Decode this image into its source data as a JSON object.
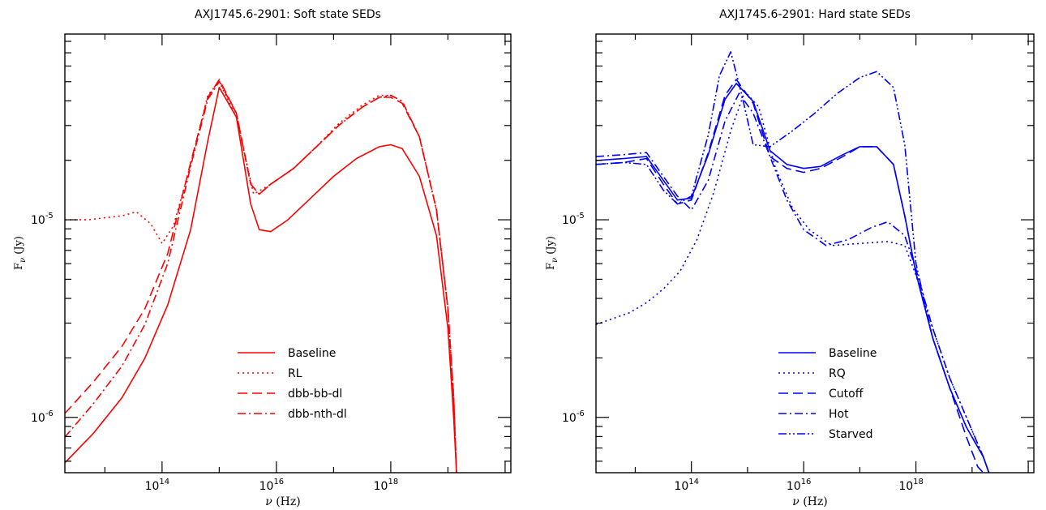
{
  "panels": [
    {
      "title": "AXJ1745.6-2901: Soft state SEDs",
      "color": "#ff0000",
      "xlabel_sym": "ν",
      "xlabel_unit": " (Hz)",
      "ylabel_main": "F",
      "ylabel_sub": "ν",
      "ylabel_unit": " (Jy)",
      "xticks": [
        {
          "base": "10",
          "exp": "14"
        },
        {
          "base": "10",
          "exp": "16"
        },
        {
          "base": "10",
          "exp": "18"
        }
      ],
      "yticks": [
        {
          "base": "10",
          "exp": "-6"
        },
        {
          "base": "10",
          "exp": "-5"
        }
      ],
      "legend": [
        "Baseline",
        "RL",
        "dbb-bb-dl",
        "dbb-nth-dl"
      ]
    },
    {
      "title": "AXJ1745.6-2901: Hard state SEDs",
      "color": "#0000ff",
      "xlabel_sym": "ν",
      "xlabel_unit": " (Hz)",
      "ylabel_main": "F",
      "ylabel_sub": "ν",
      "ylabel_unit": " (Jy)",
      "xticks": [
        {
          "base": "10",
          "exp": "14"
        },
        {
          "base": "10",
          "exp": "16"
        },
        {
          "base": "10",
          "exp": "18"
        }
      ],
      "yticks": [
        {
          "base": "10",
          "exp": "-6"
        },
        {
          "base": "10",
          "exp": "-5"
        }
      ],
      "legend": [
        "Baseline",
        "RQ",
        "Cutoff",
        "Hot",
        "Starved"
      ]
    }
  ],
  "chart_data": [
    {
      "type": "line",
      "title": "AXJ1745.6-2901: Soft state SEDs",
      "xlabel": "ν (Hz)",
      "ylabel": "Fν (Jy)",
      "xscale": "log",
      "yscale": "log",
      "xlim_log10": [
        12.3,
        20.1
      ],
      "ylim_log10": [
        -6.28,
        -4.06
      ],
      "grid": false,
      "legend_position": "lower-center",
      "series": [
        {
          "name": "Baseline",
          "style": "solid",
          "log10_x": [
            12.3,
            12.8,
            13.3,
            13.7,
            14.1,
            14.5,
            14.8,
            15.0,
            15.3,
            15.55,
            15.7,
            15.9,
            16.2,
            16.6,
            17.0,
            17.4,
            17.8,
            18.0,
            18.2,
            18.5,
            18.8,
            19.0,
            19.1,
            19.15
          ],
          "log10_y": [
            -6.23,
            -6.08,
            -5.9,
            -5.7,
            -5.43,
            -5.05,
            -4.6,
            -4.33,
            -4.48,
            -4.92,
            -5.05,
            -5.06,
            -5.0,
            -4.89,
            -4.78,
            -4.69,
            -4.63,
            -4.62,
            -4.64,
            -4.78,
            -5.08,
            -5.55,
            -6.0,
            -6.28
          ]
        },
        {
          "name": "RL",
          "style": "dotted",
          "log10_x": [
            12.3,
            12.7,
            13.0,
            13.3,
            13.55,
            13.8,
            14.0,
            14.2,
            14.5,
            14.8,
            15.0,
            15.3,
            15.6,
            15.9,
            16.3,
            16.7,
            17.1,
            17.5,
            17.8,
            18.0,
            18.2,
            18.5,
            18.8,
            19.0,
            19.1,
            19.15
          ],
          "log10_y": [
            -5.0,
            -5.0,
            -4.99,
            -4.98,
            -4.96,
            -5.02,
            -5.12,
            -5.03,
            -4.72,
            -4.37,
            -4.3,
            -4.48,
            -4.87,
            -4.82,
            -4.74,
            -4.63,
            -4.51,
            -4.42,
            -4.37,
            -4.37,
            -4.4,
            -4.58,
            -4.95,
            -5.45,
            -5.9,
            -6.28
          ]
        },
        {
          "name": "dbb-bb-dl",
          "style": "dashed",
          "log10_x": [
            12.3,
            12.8,
            13.3,
            13.7,
            14.1,
            14.5,
            14.8,
            15.0,
            15.3,
            15.55,
            15.7,
            15.9,
            16.3,
            16.7,
            17.1,
            17.5,
            17.8,
            18.0,
            18.2,
            18.5,
            18.8,
            19.0,
            19.1,
            19.15
          ],
          "log10_y": [
            -5.98,
            -5.82,
            -5.64,
            -5.45,
            -5.17,
            -4.71,
            -4.38,
            -4.29,
            -4.46,
            -4.82,
            -4.87,
            -4.82,
            -4.74,
            -4.63,
            -4.52,
            -4.43,
            -4.38,
            -4.38,
            -4.41,
            -4.58,
            -4.95,
            -5.45,
            -5.9,
            -6.28
          ]
        },
        {
          "name": "dbb-nth-dl",
          "style": "dashdot",
          "log10_x": [
            12.3,
            12.8,
            13.3,
            13.7,
            14.1,
            14.5,
            14.8,
            15.0,
            15.3,
            15.55,
            15.7,
            15.9,
            16.3,
            16.7,
            17.1,
            17.5,
            17.8,
            18.0,
            18.2,
            18.5,
            18.8,
            19.0,
            19.1,
            19.15
          ],
          "log10_y": [
            -6.1,
            -5.93,
            -5.74,
            -5.53,
            -5.22,
            -4.73,
            -4.39,
            -4.3,
            -4.46,
            -4.82,
            -4.87,
            -4.82,
            -4.74,
            -4.63,
            -4.52,
            -4.43,
            -4.38,
            -4.37,
            -4.4,
            -4.58,
            -4.95,
            -5.45,
            -5.9,
            -6.28
          ]
        }
      ]
    },
    {
      "type": "line",
      "title": "AXJ1745.6-2901: Hard state SEDs",
      "xlabel": "ν (Hz)",
      "ylabel": "Fν (Jy)",
      "xscale": "log",
      "yscale": "log",
      "xlim_log10": [
        12.3,
        20.1
      ],
      "ylim_log10": [
        -6.28,
        -4.06
      ],
      "grid": false,
      "legend_position": "lower-center",
      "series": [
        {
          "name": "Baseline",
          "style": "solid",
          "log10_x": [
            12.3,
            12.8,
            13.2,
            13.5,
            13.75,
            14.0,
            14.3,
            14.6,
            14.8,
            15.1,
            15.4,
            15.7,
            16.0,
            16.3,
            16.7,
            17.0,
            17.3,
            17.6,
            17.8,
            18.0,
            18.3,
            18.6,
            18.9,
            19.2,
            19.3
          ],
          "log10_y": [
            -4.7,
            -4.69,
            -4.68,
            -4.8,
            -4.9,
            -4.89,
            -4.67,
            -4.39,
            -4.31,
            -4.4,
            -4.65,
            -4.72,
            -4.74,
            -4.73,
            -4.67,
            -4.63,
            -4.63,
            -4.72,
            -4.98,
            -5.27,
            -5.6,
            -5.85,
            -6.05,
            -6.2,
            -6.28
          ]
        },
        {
          "name": "RQ",
          "style": "dotted",
          "log10_x": [
            12.3,
            12.6,
            12.9,
            13.2,
            13.5,
            13.8,
            14.1,
            14.4,
            14.7,
            14.95,
            15.2,
            15.5,
            15.8,
            16.1,
            16.5,
            17.0,
            17.5,
            17.8,
            18.0,
            18.3,
            18.6,
            18.9,
            19.2,
            19.3
          ],
          "log10_y": [
            -5.53,
            -5.5,
            -5.47,
            -5.42,
            -5.35,
            -5.26,
            -5.1,
            -4.86,
            -4.55,
            -4.35,
            -4.43,
            -4.74,
            -4.94,
            -5.05,
            -5.13,
            -5.12,
            -5.11,
            -5.13,
            -5.28,
            -5.55,
            -5.8,
            -6.0,
            -6.2,
            -6.28
          ]
        },
        {
          "name": "Cutoff",
          "style": "dashed",
          "log10_x": [
            12.3,
            12.8,
            13.2,
            13.5,
            13.75,
            14.0,
            14.3,
            14.6,
            14.8,
            15.1,
            15.4,
            15.7,
            16.0,
            16.3,
            16.7,
            17.0,
            17.3,
            17.6,
            17.8,
            18.0,
            18.3,
            18.6,
            18.9,
            19.1,
            19.2
          ],
          "log10_y": [
            -4.72,
            -4.71,
            -4.69,
            -4.82,
            -4.92,
            -4.9,
            -4.66,
            -4.37,
            -4.29,
            -4.41,
            -4.68,
            -4.74,
            -4.76,
            -4.74,
            -4.68,
            -4.63,
            -4.63,
            -4.72,
            -4.98,
            -5.27,
            -5.6,
            -5.85,
            -6.1,
            -6.25,
            -6.28
          ]
        },
        {
          "name": "Hot",
          "style": "dashdot",
          "log10_x": [
            12.3,
            12.8,
            13.2,
            13.5,
            13.75,
            14.0,
            14.3,
            14.6,
            14.85,
            15.1,
            15.4,
            15.7,
            16.0,
            16.4,
            16.8,
            17.2,
            17.5,
            17.8,
            18.0,
            18.3,
            18.6,
            18.9,
            19.2,
            19.3
          ],
          "log10_y": [
            -4.68,
            -4.67,
            -4.66,
            -4.78,
            -4.88,
            -4.95,
            -4.8,
            -4.5,
            -4.36,
            -4.46,
            -4.68,
            -4.9,
            -5.05,
            -5.13,
            -5.1,
            -5.04,
            -5.01,
            -5.08,
            -5.25,
            -5.55,
            -5.8,
            -6.0,
            -6.2,
            -6.28
          ]
        },
        {
          "name": "Starved",
          "style": "dashdotdot",
          "log10_x": [
            12.3,
            12.8,
            13.2,
            13.5,
            13.75,
            14.0,
            14.3,
            14.5,
            14.7,
            14.9,
            15.1,
            15.4,
            15.8,
            16.2,
            16.6,
            17.0,
            17.3,
            17.6,
            17.8,
            18.0,
            18.3,
            18.6,
            18.9,
            19.2,
            19.3
          ],
          "log10_y": [
            -4.72,
            -4.71,
            -4.72,
            -4.85,
            -4.92,
            -4.88,
            -4.57,
            -4.27,
            -4.15,
            -4.37,
            -4.62,
            -4.63,
            -4.55,
            -4.46,
            -4.36,
            -4.28,
            -4.25,
            -4.33,
            -4.62,
            -5.22,
            -5.6,
            -5.85,
            -6.05,
            -6.2,
            -6.28
          ]
        }
      ]
    }
  ]
}
